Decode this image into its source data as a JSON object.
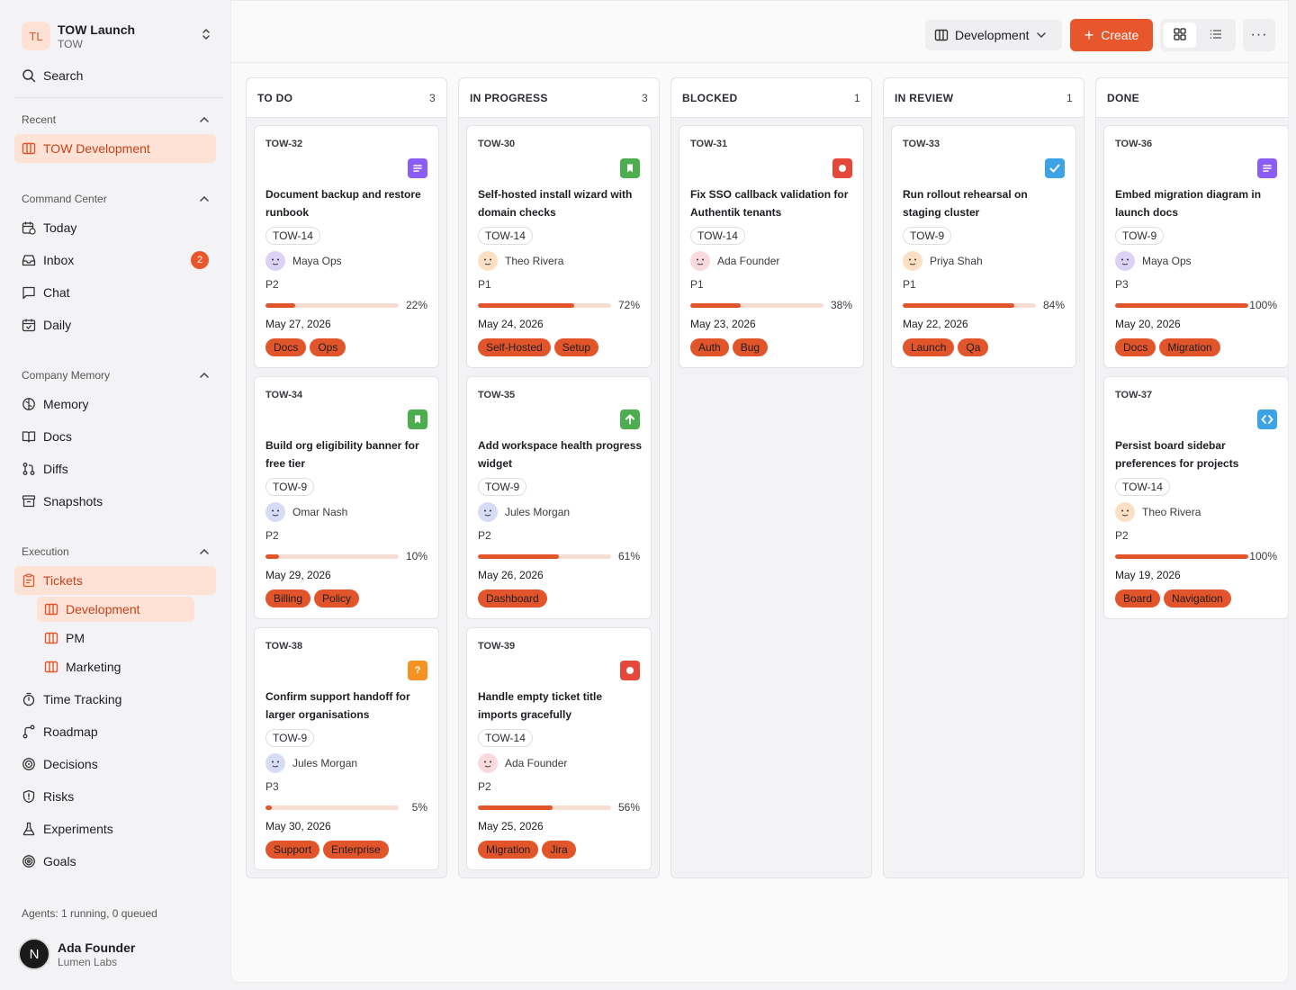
{
  "workspace": {
    "initials": "TL",
    "name": "TOW Launch",
    "key": "TOW"
  },
  "search_label": "Search",
  "sections": {
    "recent": "Recent",
    "command_center": "Command Center",
    "company_memory": "Company Memory",
    "execution": "Execution"
  },
  "nav": {
    "recent_item": "TOW Development",
    "today": "Today",
    "inbox": "Inbox",
    "inbox_count": "2",
    "chat": "Chat",
    "daily": "Daily",
    "memory": "Memory",
    "docs": "Docs",
    "diffs": "Diffs",
    "snapshots": "Snapshots",
    "tickets": "Tickets",
    "development": "Development",
    "pm": "PM",
    "marketing": "Marketing",
    "time_tracking": "Time Tracking",
    "roadmap": "Roadmap",
    "decisions": "Decisions",
    "risks": "Risks",
    "experiments": "Experiments",
    "goals": "Goals"
  },
  "agents_status": "Agents: 1 running, 0 queued",
  "user": {
    "initial": "N",
    "name": "Ada Founder",
    "org": "Lumen Labs"
  },
  "toolbar": {
    "view_name": "Development",
    "create_label": "Create",
    "more_label": "···"
  },
  "colors": {
    "accent": "#e8572b",
    "tag_bg": "#e2552a",
    "progress_track": "#f8ddd3"
  },
  "columns": [
    {
      "title": "TO DO",
      "count": "3",
      "cards": [
        {
          "id": "TOW-32",
          "type": "doc",
          "type_color": "#8b5cf6",
          "title": "Document backup and restore runbook",
          "parent": "TOW-14",
          "assignee": "Maya Ops",
          "face": "purple",
          "priority": "P2",
          "progress": 22,
          "progress_label": "22%",
          "date": "May 27, 2026",
          "tags": [
            "Docs",
            "Ops"
          ]
        },
        {
          "id": "TOW-34",
          "type": "bookmark",
          "type_color": "#4cae4f",
          "title": "Build org eligibility banner for free tier",
          "parent": "TOW-9",
          "assignee": "Omar Nash",
          "face": "blue",
          "priority": "P2",
          "progress": 10,
          "progress_label": "10%",
          "date": "May 29, 2026",
          "tags": [
            "Billing",
            "Policy"
          ]
        },
        {
          "id": "TOW-38",
          "type": "question",
          "type_color": "#f59322",
          "title": "Confirm support handoff for larger organisations",
          "parent": "TOW-9",
          "assignee": "Jules Morgan",
          "face": "blue",
          "priority": "P3",
          "progress": 5,
          "progress_label": "5%",
          "date": "May 30, 2026",
          "tags": [
            "Support",
            "Enterprise"
          ]
        }
      ]
    },
    {
      "title": "IN PROGRESS",
      "count": "3",
      "cards": [
        {
          "id": "TOW-30",
          "type": "bookmark",
          "type_color": "#4cae4f",
          "title": "Self-hosted install wizard with domain checks",
          "parent": "TOW-14",
          "assignee": "Theo Rivera",
          "face": "peach",
          "priority": "P1",
          "progress": 72,
          "progress_label": "72%",
          "date": "May 24, 2026",
          "tags": [
            "Self-Hosted",
            "Setup"
          ]
        },
        {
          "id": "TOW-35",
          "type": "arrow",
          "type_color": "#4cae4f",
          "title": "Add workspace health progress widget",
          "parent": "TOW-9",
          "assignee": "Jules Morgan",
          "face": "blue",
          "priority": "P2",
          "progress": 61,
          "progress_label": "61%",
          "date": "May 26, 2026",
          "tags": [
            "Dashboard"
          ]
        },
        {
          "id": "TOW-39",
          "type": "bug",
          "type_color": "#e5483b",
          "title": "Handle empty ticket title imports gracefully",
          "parent": "TOW-14",
          "assignee": "Ada Founder",
          "face": "pink",
          "priority": "P2",
          "progress": 56,
          "progress_label": "56%",
          "date": "May 25, 2026",
          "tags": [
            "Migration",
            "Jira"
          ]
        }
      ]
    },
    {
      "title": "BLOCKED",
      "count": "1",
      "cards": [
        {
          "id": "TOW-31",
          "type": "bug",
          "type_color": "#e5483b",
          "title": "Fix SSO callback validation for Authentik tenants",
          "parent": "TOW-14",
          "assignee": "Ada Founder",
          "face": "pink",
          "priority": "P1",
          "progress": 38,
          "progress_label": "38%",
          "date": "May 23, 2026",
          "tags": [
            "Auth",
            "Bug"
          ]
        }
      ]
    },
    {
      "title": "IN REVIEW",
      "count": "1",
      "cards": [
        {
          "id": "TOW-33",
          "type": "check",
          "type_color": "#3ba3e6",
          "title": "Run rollout rehearsal on staging cluster",
          "parent": "TOW-9",
          "assignee": "Priya Shah",
          "face": "peach",
          "priority": "P1",
          "progress": 84,
          "progress_label": "84%",
          "date": "May 22, 2026",
          "tags": [
            "Launch",
            "Qa"
          ]
        }
      ]
    },
    {
      "title": "DONE",
      "count": "",
      "cards": [
        {
          "id": "TOW-36",
          "type": "doc",
          "type_color": "#8b5cf6",
          "title": "Embed migration diagram in launch docs",
          "parent": "TOW-9",
          "assignee": "Maya Ops",
          "face": "purple",
          "priority": "P3",
          "progress": 100,
          "progress_label": "100%",
          "date": "May 20, 2026",
          "tags": [
            "Docs",
            "Migration"
          ]
        },
        {
          "id": "TOW-37",
          "type": "code",
          "type_color": "#3ba3e6",
          "title": "Persist board sidebar preferences for projects",
          "parent": "TOW-14",
          "assignee": "Theo Rivera",
          "face": "peach",
          "priority": "P2",
          "progress": 100,
          "progress_label": "100%",
          "date": "May 19, 2026",
          "tags": [
            "Board",
            "Navigation"
          ]
        }
      ]
    }
  ]
}
